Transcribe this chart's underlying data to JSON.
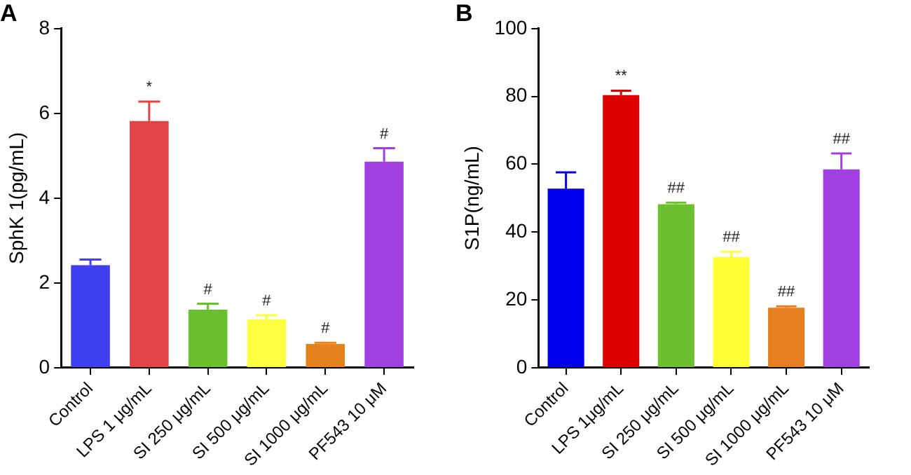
{
  "chart_data": [
    {
      "type": "bar",
      "title": "A",
      "ylabel": "SphK 1(pg/mL)",
      "categories": [
        "Control",
        "LPS 1 μg/mL",
        "SI 250 μg/mL",
        "SI 500 μg/mL",
        "SI 1000 μg/mL",
        "PF543 10 μM"
      ],
      "values": [
        2.42,
        5.82,
        1.37,
        1.14,
        0.56,
        4.86
      ],
      "errors": [
        0.13,
        0.46,
        0.14,
        0.1,
        0.03,
        0.32
      ],
      "colors": [
        "#4040f0",
        "#e04444",
        "#6abf2e",
        "#ffff40",
        "#e4821e",
        "#a040e0"
      ],
      "ylim": [
        0,
        8
      ],
      "yticks": [
        0,
        2,
        4,
        6,
        8
      ],
      "grid": false,
      "legend": false,
      "annotations": [
        {
          "text": "*",
          "x": "LPS 1 μg/mL",
          "y": 5.82
        },
        {
          "text": "#",
          "x": "SI 250 μg/mL",
          "y": 1.37
        },
        {
          "text": "#",
          "x": "SI 500 μg/mL",
          "y": 1.14
        },
        {
          "text": "#",
          "x": "SI 1000 μg/mL",
          "y": 0.56
        },
        {
          "text": "#",
          "x": "PF543 10 μM",
          "y": 4.86
        }
      ]
    },
    {
      "type": "bar",
      "title": "B",
      "ylabel": "S1P(ng/mL)",
      "categories": [
        "Control",
        "LPS 1μg/mL",
        "SI 250 μg/mL",
        "SI 500 μg/mL",
        "SI 1000 μg/mL",
        "PF543 10 μM"
      ],
      "values": [
        52.8,
        80.4,
        48.2,
        32.6,
        17.7,
        58.5
      ],
      "errors": [
        4.8,
        1.3,
        0.5,
        1.6,
        0.4,
        4.7
      ],
      "colors": [
        "#0000ee",
        "#dd0000",
        "#6cbf2e",
        "#ffff33",
        "#e57e20",
        "#a040e0"
      ],
      "ylim": [
        0,
        100
      ],
      "yticks": [
        0,
        20,
        40,
        60,
        80,
        100
      ],
      "grid": false,
      "legend": false,
      "annotations": [
        {
          "text": "**",
          "x": "LPS 1μg/mL",
          "y": 80.4
        },
        {
          "text": "##",
          "x": "SI 250 μg/mL",
          "y": 48.2
        },
        {
          "text": "##",
          "x": "SI 500 μg/mL",
          "y": 32.6
        },
        {
          "text": "##",
          "x": "SI 1000 μg/mL",
          "y": 17.7
        },
        {
          "text": "##",
          "x": "PF543 10 μM",
          "y": 58.5
        }
      ]
    }
  ]
}
